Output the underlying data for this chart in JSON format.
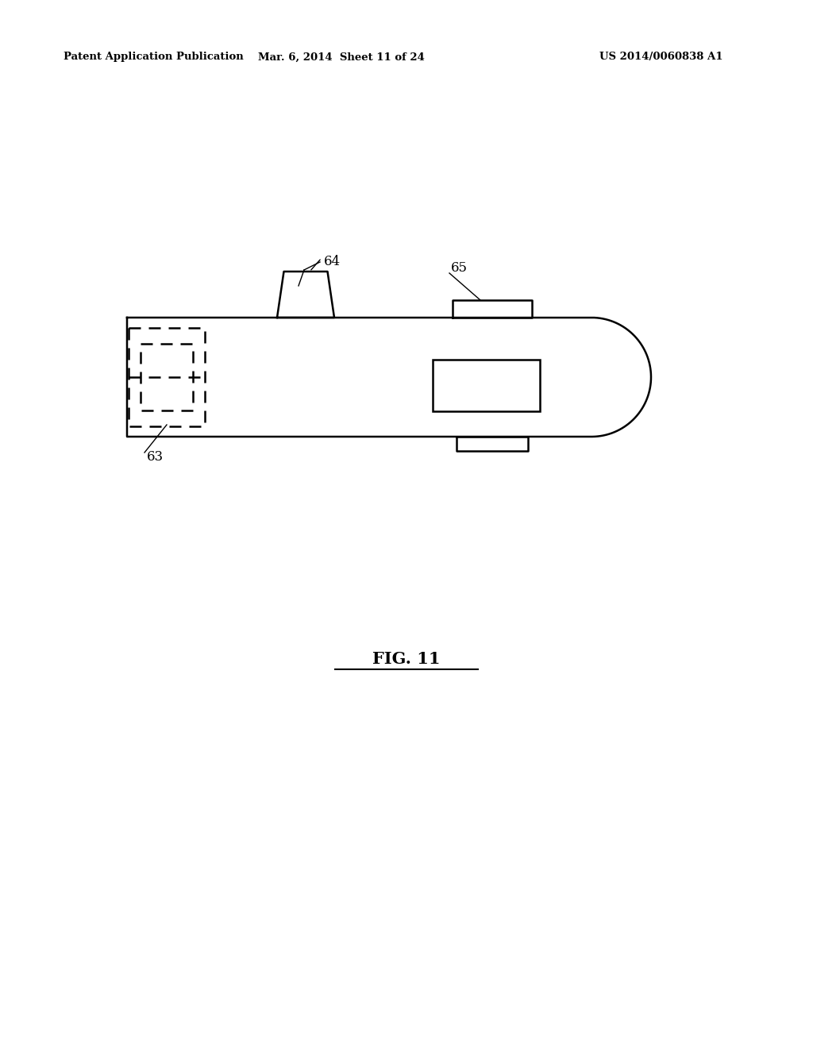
{
  "bg_color": "#ffffff",
  "line_color": "#000000",
  "header_left": "Patent Application Publication",
  "header_mid": "Mar. 6, 2014  Sheet 11 of 24",
  "header_right": "US 2014/0060838 A1",
  "fig_label": "FIG. 11",
  "label_63": "63",
  "label_64": "64",
  "label_65": "65"
}
